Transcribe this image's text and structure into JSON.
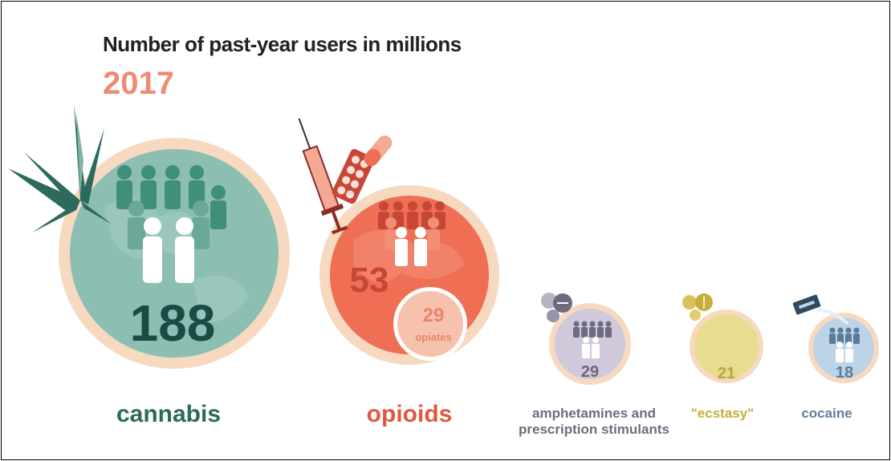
{
  "header": {
    "title": "Number of past-year users in millions",
    "year": "2017"
  },
  "chart_data": {
    "type": "bubble",
    "title": "Number of past-year users in millions",
    "subtitle": "2017",
    "categories": [
      "cannabis",
      "opioids",
      "amphetamines and prescription stimulants",
      "\"ecstasy\"",
      "cocaine"
    ],
    "values": [
      188,
      53,
      29,
      21,
      18
    ],
    "annotations": [
      {
        "category": "opioids",
        "value": 29,
        "label": "opiates"
      }
    ],
    "colors": {
      "cannabis": "#7fb4a7",
      "opioids": "#ef6f55",
      "amphetamines": "#c9c3d6",
      "ecstasy": "#e6d98a",
      "cocaine": "#b8d1e6",
      "ring": "#f7d9c0"
    }
  },
  "items": {
    "cannabis": {
      "label": "cannabis",
      "value": "188"
    },
    "opioids": {
      "label": "opioids",
      "value": "53",
      "sub_value": "29",
      "sub_label": "opiates"
    },
    "amphetamines": {
      "label_line1": "amphetamines and",
      "label_line2": "prescription stimulants",
      "value": "29"
    },
    "ecstasy": {
      "label": "\"ecstasy\"",
      "value": "21"
    },
    "cocaine": {
      "label": "cocaine",
      "value": "18"
    }
  },
  "icons": [
    "cannabis-leaf-icon",
    "syringe-icon",
    "pill-blister-icon",
    "capsule-icon",
    "tablets-icon",
    "razor-blade-icon",
    "people-icon"
  ]
}
